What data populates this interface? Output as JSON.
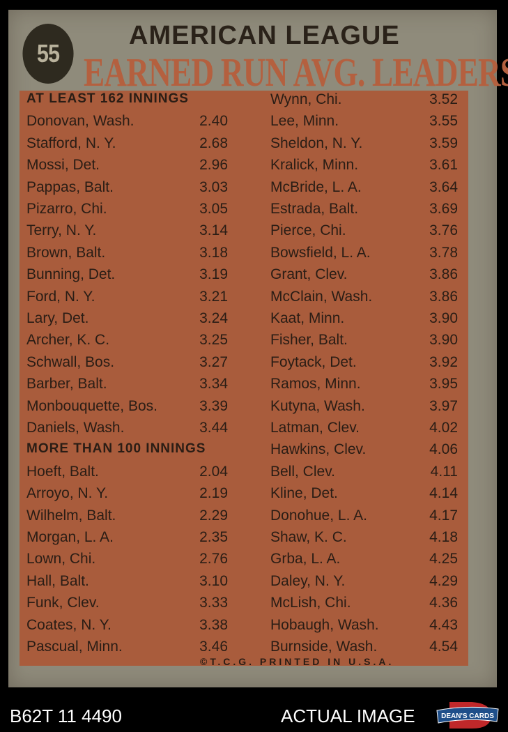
{
  "card": {
    "number": "55",
    "league": "AMERICAN LEAGUE",
    "title": "EARNED RUN AVG. LEADERS",
    "copyright": "©T.C.G. PRINTED IN U.S.A."
  },
  "left_column": [
    {
      "header": "AT LEAST 162 INNINGS"
    },
    {
      "name": "Donovan, Wash.",
      "era": "2.40"
    },
    {
      "name": "Stafford, N. Y.",
      "era": "2.68"
    },
    {
      "name": "Mossi, Det.",
      "era": "2.96"
    },
    {
      "name": "Pappas, Balt.",
      "era": "3.03"
    },
    {
      "name": "Pizarro, Chi.",
      "era": "3.05"
    },
    {
      "name": "Terry, N. Y.",
      "era": "3.14"
    },
    {
      "name": "Brown, Balt.",
      "era": "3.18"
    },
    {
      "name": "Bunning, Det.",
      "era": "3.19"
    },
    {
      "name": "Ford, N. Y.",
      "era": "3.21"
    },
    {
      "name": "Lary, Det.",
      "era": "3.24"
    },
    {
      "name": "Archer, K. C.",
      "era": "3.25"
    },
    {
      "name": "Schwall, Bos.",
      "era": "3.27"
    },
    {
      "name": "Barber, Balt.",
      "era": "3.34"
    },
    {
      "name": "Monbouquette, Bos.",
      "era": "3.39"
    },
    {
      "name": "Daniels, Wash.",
      "era": "3.44"
    },
    {
      "header": "MORE THAN 100 INNINGS"
    },
    {
      "name": "Hoeft, Balt.",
      "era": "2.04"
    },
    {
      "name": "Arroyo, N. Y.",
      "era": "2.19"
    },
    {
      "name": "Wilhelm, Balt.",
      "era": "2.29"
    },
    {
      "name": "Morgan, L. A.",
      "era": "2.35"
    },
    {
      "name": "Lown, Chi.",
      "era": "2.76"
    },
    {
      "name": "Hall, Balt.",
      "era": "3.10"
    },
    {
      "name": "Funk, Clev.",
      "era": "3.33"
    },
    {
      "name": "Coates, N. Y.",
      "era": "3.38"
    },
    {
      "name": "Pascual, Minn.",
      "era": "3.46"
    }
  ],
  "right_column": [
    {
      "name": "Wynn, Chi.",
      "era": "3.52"
    },
    {
      "name": "Lee, Minn.",
      "era": "3.55"
    },
    {
      "name": "Sheldon, N. Y.",
      "era": "3.59"
    },
    {
      "name": "Kralick, Minn.",
      "era": "3.61"
    },
    {
      "name": "McBride, L. A.",
      "era": "3.64"
    },
    {
      "name": "Estrada, Balt.",
      "era": "3.69"
    },
    {
      "name": "Pierce, Chi.",
      "era": "3.76"
    },
    {
      "name": "Bowsfield, L. A.",
      "era": "3.78"
    },
    {
      "name": "Grant, Clev.",
      "era": "3.86"
    },
    {
      "name": "McClain, Wash.",
      "era": "3.86"
    },
    {
      "name": "Kaat, Minn.",
      "era": "3.90"
    },
    {
      "name": "Fisher, Balt.",
      "era": "3.90"
    },
    {
      "name": "Foytack, Det.",
      "era": "3.92"
    },
    {
      "name": "Ramos, Minn.",
      "era": "3.95"
    },
    {
      "name": "Kutyna, Wash.",
      "era": "3.97"
    },
    {
      "name": "Latman, Clev.",
      "era": "4.02"
    },
    {
      "name": "Hawkins, Clev.",
      "era": "4.06"
    },
    {
      "name": "Bell, Clev.",
      "era": "4.11"
    },
    {
      "name": "Kline, Det.",
      "era": "4.14"
    },
    {
      "name": "Donohue, L. A.",
      "era": "4.17"
    },
    {
      "name": "Shaw, K. C.",
      "era": "4.18"
    },
    {
      "name": "Grba, L. A.",
      "era": "4.25"
    },
    {
      "name": "Daley, N. Y.",
      "era": "4.29"
    },
    {
      "name": "McLish, Chi.",
      "era": "4.36"
    },
    {
      "name": "Hobaugh, Wash.",
      "era": "4.43"
    },
    {
      "name": "Burnside, Wash.",
      "era": "4.54"
    }
  ],
  "footer": {
    "sku": "B62T 11 4490",
    "label": "ACTUAL IMAGE",
    "logo_text": "DEAN'S CARDS"
  },
  "colors": {
    "card": "#8f8b7b",
    "panel": "#a95c3c",
    "title_red": "#b4603f",
    "ink": "#2a1d15"
  }
}
